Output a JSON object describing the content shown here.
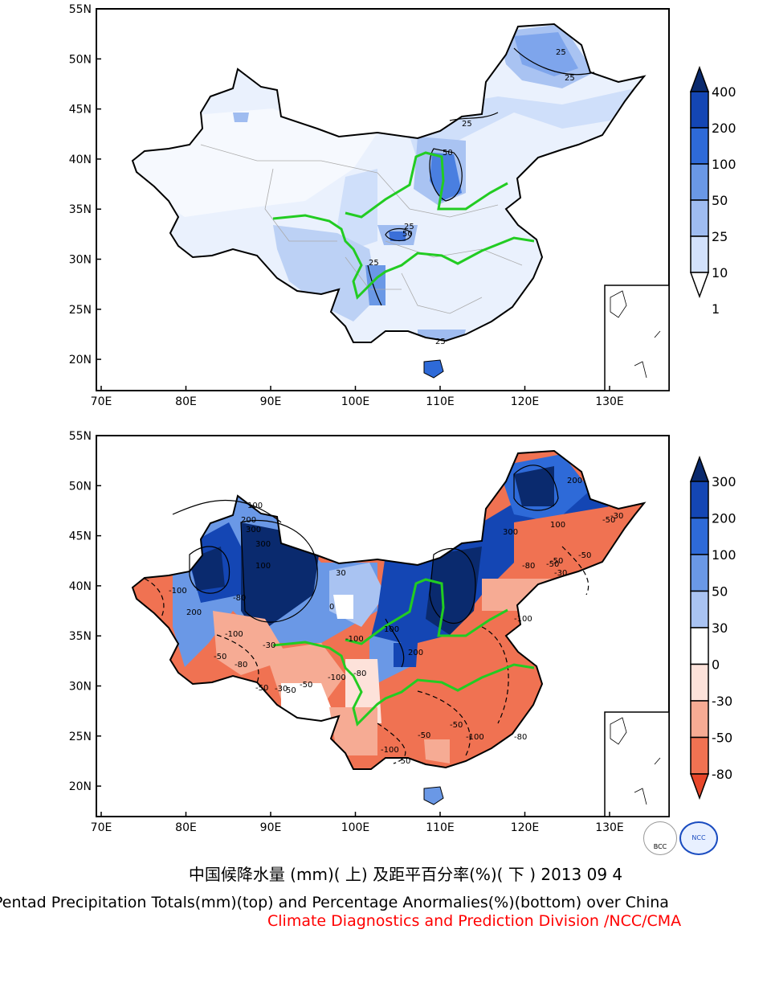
{
  "top_panel": {
    "lat_labels": [
      "55N",
      "50N",
      "45N",
      "40N",
      "35N",
      "30N",
      "25N",
      "20N"
    ],
    "lon_labels": [
      "70E",
      "80E",
      "90E",
      "100E",
      "110E",
      "120E",
      "130E"
    ],
    "colorbar_labels": [
      "400",
      "200",
      "100",
      "50",
      "25",
      "10",
      "1"
    ],
    "colorbar_colors": [
      "#0a2a6e",
      "#1446b4",
      "#2e6ad8",
      "#6a98e6",
      "#9fbcf0",
      "#d2e1fb",
      "#ffffff"
    ],
    "contour_labels": [
      "25",
      "25",
      "25",
      "50",
      "25",
      "50",
      "25",
      "25"
    ]
  },
  "bottom_panel": {
    "lat_labels": [
      "55N",
      "50N",
      "45N",
      "40N",
      "35N",
      "30N",
      "25N",
      "20N"
    ],
    "lon_labels": [
      "70E",
      "80E",
      "90E",
      "100E",
      "110E",
      "120E",
      "130E"
    ],
    "colorbar_labels": [
      "300",
      "200",
      "100",
      "50",
      "30",
      "0",
      "-30",
      "-50",
      "-80"
    ],
    "colorbar_colors": [
      "#0a2a6e",
      "#1446b4",
      "#2e6ad8",
      "#6a98e6",
      "#a9c3f2",
      "#ffffff",
      "#fde2da",
      "#f6ab94",
      "#f07252",
      "#e8472a"
    ],
    "contour_labels": [
      "100",
      "200",
      "300",
      "300",
      "200",
      "100",
      "-100",
      "-80",
      "-100",
      "-50",
      "-30",
      "-50",
      "-80",
      "-100",
      "-50",
      "-30",
      "-100",
      "-50",
      "-100",
      "-80",
      "-50",
      "-50",
      "-100",
      "-80",
      "200",
      "100",
      "50",
      "0",
      "30",
      "200",
      "300",
      "100",
      "-50",
      "-30",
      "-30",
      "-80",
      "-50",
      "-50",
      "-100",
      "-50"
    ]
  },
  "logos": {
    "left": "BCC",
    "right": "NCC"
  },
  "captions": {
    "chinese": "中国候降水量 (mm)( 上) 及距平百分率(%)( 下 ) 2013 09 4",
    "english": "Pentad Precipitation Totals(mm)(top) and Percentage Anormalies(%)(bottom) over China",
    "credit": "Climate Diagnostics and Prediction Division /NCC/CMA"
  },
  "colors": {
    "river": "#22cc22",
    "credit": "#ff0000",
    "border": "#000000"
  }
}
